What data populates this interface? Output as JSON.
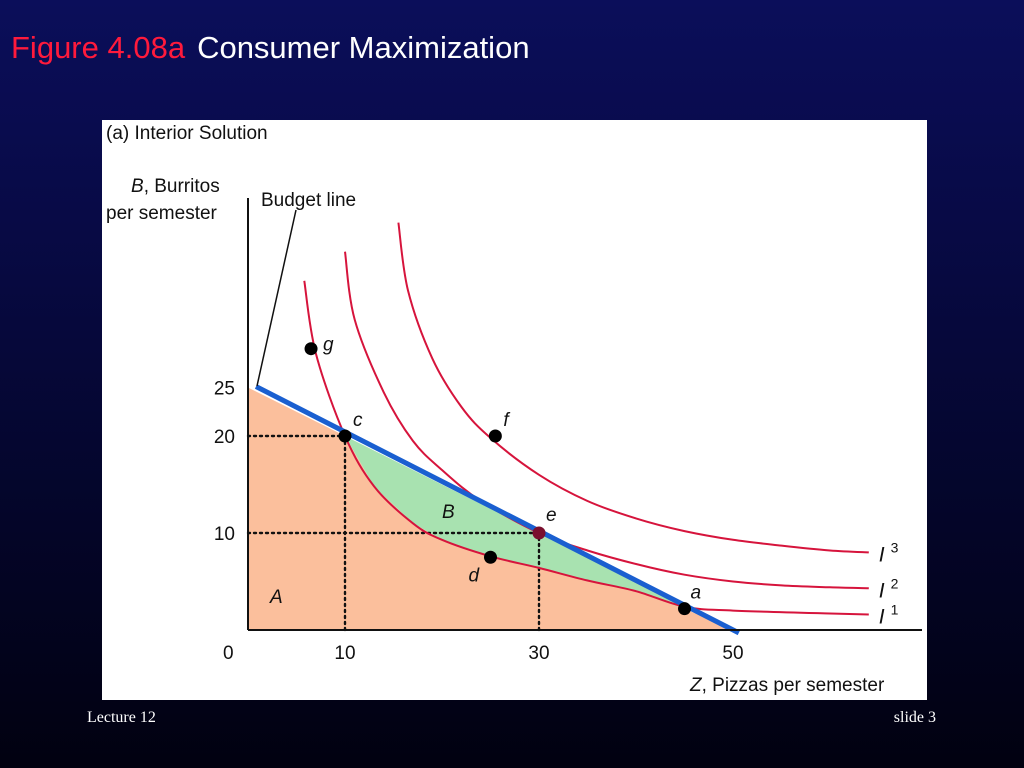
{
  "slide": {
    "title_figure": "Figure 4.08a",
    "title_main": "Consumer Maximization",
    "footer_left": "Lecture 12",
    "footer_right": "slide 3",
    "colors": {
      "background": "#0b0e5a",
      "title_figure": "#ff1a3c",
      "title_main": "#ffffff"
    }
  },
  "chart_data": {
    "type": "line",
    "panel_title": "(a) Interior Solution",
    "ylabel_var": "B",
    "ylabel_rest": ", Burritos",
    "ylabel_line2": "per semester",
    "xlabel_var": "Z",
    "xlabel_rest": ", Pizzas per semester",
    "origin_label": "0",
    "xlim": [
      0,
      70
    ],
    "ylim": [
      0,
      47
    ],
    "x_ticks": [
      {
        "value": 10,
        "label": "10"
      },
      {
        "value": 30,
        "label": "30"
      },
      {
        "value": 50,
        "label": "50"
      }
    ],
    "y_ticks": [
      {
        "value": 10,
        "label": "10"
      },
      {
        "value": 20,
        "label": "20"
      },
      {
        "value": 25,
        "label": "25"
      }
    ],
    "budget_line": {
      "label": "Budget line",
      "x": [
        0,
        50
      ],
      "y": [
        25,
        0
      ],
      "color": "#1a5fd0"
    },
    "indifference_curves": [
      {
        "name": "I",
        "superscript": "1",
        "color": "#d6143c",
        "x": [
          5.8,
          7,
          10,
          13,
          17,
          20,
          25,
          30,
          35,
          40,
          45,
          50,
          60,
          64
        ],
        "y": [
          36,
          28.5,
          20,
          14.8,
          11,
          9.3,
          7.6,
          6.4,
          5.1,
          4.0,
          2.4,
          2.0,
          1.7,
          1.6
        ]
      },
      {
        "name": "I",
        "superscript": "2",
        "color": "#d6143c",
        "x": [
          10,
          11,
          14,
          17,
          20,
          24,
          30,
          35,
          40,
          45,
          50,
          55,
          60,
          64
        ],
        "y": [
          39,
          32,
          24.5,
          19.5,
          16.5,
          13.3,
          10,
          8.2,
          6.8,
          5.7,
          5.0,
          4.6,
          4.4,
          4.3
        ]
      },
      {
        "name": "I",
        "superscript": "3",
        "color": "#d6143c",
        "x": [
          15.5,
          16.5,
          19,
          22,
          25,
          30,
          35,
          40,
          45,
          50,
          55,
          60,
          64
        ],
        "y": [
          42,
          35,
          28,
          23,
          19.8,
          16,
          13.3,
          11.5,
          10.2,
          9.3,
          8.7,
          8.2,
          8.0
        ]
      }
    ],
    "points": [
      {
        "label": "g",
        "x": 6.5,
        "y": 29,
        "color": "#000000"
      },
      {
        "label": "c",
        "x": 10,
        "y": 20,
        "color": "#000000"
      },
      {
        "label": "f",
        "x": 25.5,
        "y": 20,
        "color": "#000000"
      },
      {
        "label": "e",
        "x": 30,
        "y": 10,
        "color": "#7a0f2e"
      },
      {
        "label": "d",
        "x": 25,
        "y": 7.5,
        "color": "#000000"
      },
      {
        "label": "a",
        "x": 45,
        "y": 2.2,
        "color": "#000000"
      }
    ],
    "guides": [
      {
        "from": [
          0,
          20
        ],
        "to": [
          10,
          20
        ]
      },
      {
        "from": [
          10,
          0
        ],
        "to": [
          10,
          20
        ]
      },
      {
        "from": [
          0,
          10
        ],
        "to": [
          30,
          10
        ]
      },
      {
        "from": [
          30,
          0
        ],
        "to": [
          30,
          10
        ]
      }
    ],
    "region_a": {
      "label": "A",
      "color": "#fbbf9c"
    },
    "region_b": {
      "label": "B",
      "color": "#a8e2b0"
    },
    "legend": "curve-end labels at right"
  }
}
